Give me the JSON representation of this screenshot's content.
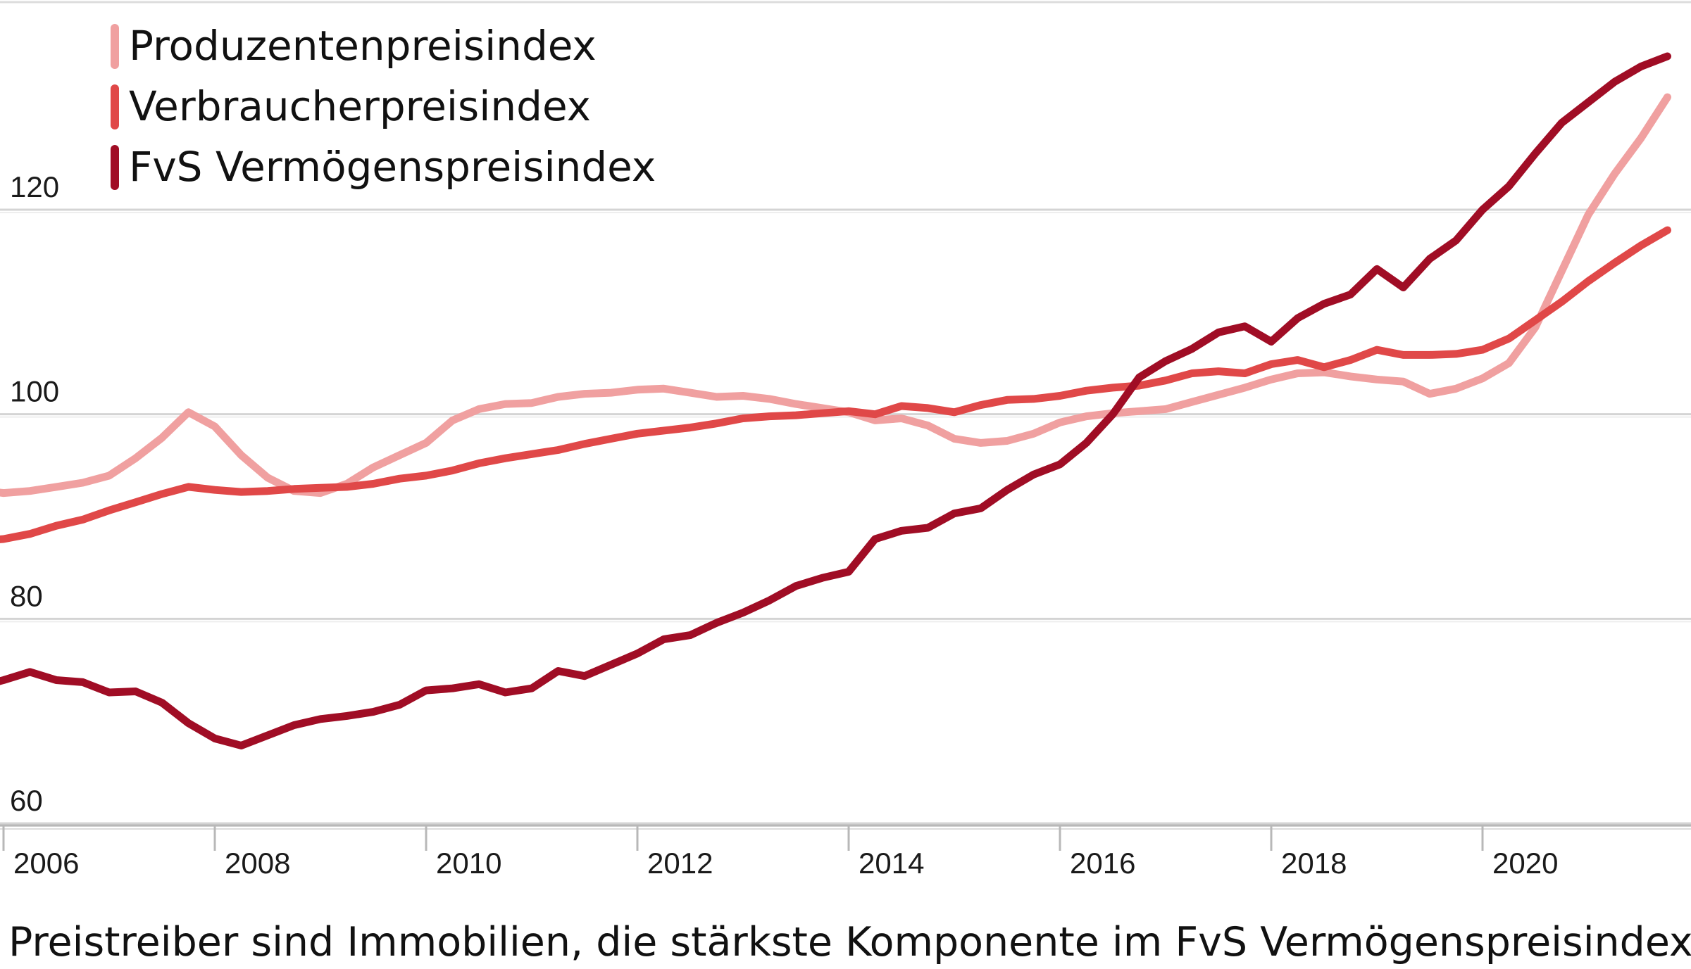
{
  "chart_data": {
    "type": "line",
    "title": "",
    "xlabel": "",
    "ylabel": "",
    "caption": "Preistreiber sind Immobilien, die stärkste Komponente im FvS Vermögenspreisindex",
    "xlim": [
      2005.0,
      2021.75
    ],
    "ylim": [
      58,
      138
    ],
    "yticks": [
      60,
      80,
      100,
      120
    ],
    "ytick_labels": [
      "60",
      "80",
      "100",
      "120"
    ],
    "xticks": [
      2006,
      2008,
      2010,
      2012,
      2014,
      2016,
      2018,
      2020
    ],
    "xtick_labels": [
      "2006",
      "2008",
      "2010",
      "2012",
      "2014",
      "2016",
      "2018",
      "2020"
    ],
    "grid": true,
    "legend_position": "top-left",
    "series": [
      {
        "name": "Produzentenpreisindex",
        "color": "#f0a0a0",
        "points": [
          [
            2005.0,
            89.5
          ],
          [
            2005.25,
            91.7
          ],
          [
            2005.5,
            92.8
          ],
          [
            2005.75,
            92.6
          ],
          [
            2006.0,
            92.3
          ],
          [
            2006.25,
            92.5
          ],
          [
            2006.5,
            92.9
          ],
          [
            2006.75,
            93.3
          ],
          [
            2007.0,
            94.0
          ],
          [
            2007.25,
            95.7
          ],
          [
            2007.5,
            97.7
          ],
          [
            2007.75,
            100.2
          ],
          [
            2008.0,
            98.8
          ],
          [
            2008.25,
            96.0
          ],
          [
            2008.5,
            93.8
          ],
          [
            2008.75,
            92.5
          ],
          [
            2009.0,
            92.3
          ],
          [
            2009.25,
            93.2
          ],
          [
            2009.5,
            94.8
          ],
          [
            2009.75,
            96.0
          ],
          [
            2010.0,
            97.2
          ],
          [
            2010.25,
            99.4
          ],
          [
            2010.5,
            100.5
          ],
          [
            2010.75,
            101.0
          ],
          [
            2011.0,
            101.1
          ],
          [
            2011.25,
            101.7
          ],
          [
            2011.5,
            102.0
          ],
          [
            2011.75,
            102.1
          ],
          [
            2012.0,
            102.4
          ],
          [
            2012.25,
            102.5
          ],
          [
            2012.5,
            102.1
          ],
          [
            2012.75,
            101.7
          ],
          [
            2013.0,
            101.8
          ],
          [
            2013.25,
            101.5
          ],
          [
            2013.5,
            101.0
          ],
          [
            2013.75,
            100.6
          ],
          [
            2014.0,
            100.2
          ],
          [
            2014.25,
            99.4
          ],
          [
            2014.5,
            99.6
          ],
          [
            2014.75,
            98.9
          ],
          [
            2015.0,
            97.6
          ],
          [
            2015.25,
            97.2
          ],
          [
            2015.5,
            97.4
          ],
          [
            2015.75,
            98.1
          ],
          [
            2016.0,
            99.2
          ],
          [
            2016.25,
            99.8
          ],
          [
            2016.5,
            100.1
          ],
          [
            2016.75,
            100.3
          ],
          [
            2017.0,
            100.5
          ],
          [
            2017.25,
            101.2
          ],
          [
            2017.5,
            101.9
          ],
          [
            2017.75,
            102.6
          ],
          [
            2018.0,
            103.4
          ],
          [
            2018.25,
            104.0
          ],
          [
            2018.5,
            104.1
          ],
          [
            2018.75,
            103.7
          ],
          [
            2019.0,
            103.4
          ],
          [
            2019.25,
            103.2
          ],
          [
            2019.5,
            102.0
          ],
          [
            2019.75,
            102.5
          ],
          [
            2020.0,
            103.5
          ],
          [
            2020.25,
            105.0
          ],
          [
            2020.5,
            108.5
          ],
          [
            2020.75,
            114.0
          ],
          [
            2021.0,
            119.5
          ],
          [
            2021.25,
            123.5
          ],
          [
            2021.5,
            127.0
          ],
          [
            2021.75,
            131.0
          ]
        ]
      },
      {
        "name": "Verbraucherpreisindex",
        "color": "#e04848",
        "points": [
          [
            2005.0,
            86.7
          ],
          [
            2005.25,
            87.0
          ],
          [
            2005.5,
            87.4
          ],
          [
            2005.75,
            87.6
          ],
          [
            2006.0,
            87.8
          ],
          [
            2006.25,
            88.3
          ],
          [
            2006.5,
            89.1
          ],
          [
            2006.75,
            89.7
          ],
          [
            2007.0,
            90.6
          ],
          [
            2007.25,
            91.4
          ],
          [
            2007.5,
            92.2
          ],
          [
            2007.75,
            92.9
          ],
          [
            2008.0,
            92.6
          ],
          [
            2008.25,
            92.4
          ],
          [
            2008.5,
            92.5
          ],
          [
            2008.75,
            92.7
          ],
          [
            2009.0,
            92.8
          ],
          [
            2009.25,
            92.9
          ],
          [
            2009.5,
            93.2
          ],
          [
            2009.75,
            93.7
          ],
          [
            2010.0,
            94.0
          ],
          [
            2010.25,
            94.5
          ],
          [
            2010.5,
            95.2
          ],
          [
            2010.75,
            95.7
          ],
          [
            2011.0,
            96.1
          ],
          [
            2011.25,
            96.5
          ],
          [
            2011.5,
            97.1
          ],
          [
            2011.75,
            97.6
          ],
          [
            2012.0,
            98.1
          ],
          [
            2012.25,
            98.4
          ],
          [
            2012.5,
            98.7
          ],
          [
            2012.75,
            99.1
          ],
          [
            2013.0,
            99.6
          ],
          [
            2013.25,
            99.8
          ],
          [
            2013.5,
            99.9
          ],
          [
            2013.75,
            100.1
          ],
          [
            2014.0,
            100.3
          ],
          [
            2014.25,
            100.0
          ],
          [
            2014.5,
            100.8
          ],
          [
            2014.75,
            100.6
          ],
          [
            2015.0,
            100.2
          ],
          [
            2015.25,
            100.9
          ],
          [
            2015.5,
            101.4
          ],
          [
            2015.75,
            101.5
          ],
          [
            2016.0,
            101.8
          ],
          [
            2016.25,
            102.3
          ],
          [
            2016.5,
            102.6
          ],
          [
            2016.75,
            102.8
          ],
          [
            2017.0,
            103.3
          ],
          [
            2017.25,
            104.0
          ],
          [
            2017.5,
            104.2
          ],
          [
            2017.75,
            104.0
          ],
          [
            2018.0,
            104.9
          ],
          [
            2018.25,
            105.3
          ],
          [
            2018.5,
            104.6
          ],
          [
            2018.75,
            105.3
          ],
          [
            2019.0,
            106.3
          ],
          [
            2019.25,
            105.8
          ],
          [
            2019.5,
            105.8
          ],
          [
            2019.75,
            105.9
          ],
          [
            2020.0,
            106.3
          ],
          [
            2020.25,
            107.4
          ],
          [
            2020.5,
            109.2
          ],
          [
            2020.75,
            111.0
          ],
          [
            2021.0,
            113.0
          ],
          [
            2021.25,
            114.8
          ],
          [
            2021.5,
            116.5
          ],
          [
            2021.75,
            118.0
          ]
        ]
      },
      {
        "name": "FvS Vermögenspreisindex",
        "color": "#a00d25",
        "points": [
          [
            2005.0,
            71.2
          ],
          [
            2005.25,
            72.0
          ],
          [
            2005.5,
            72.3
          ],
          [
            2005.75,
            73.3
          ],
          [
            2006.0,
            74.0
          ],
          [
            2006.25,
            74.8
          ],
          [
            2006.5,
            74.0
          ],
          [
            2006.75,
            73.8
          ],
          [
            2007.0,
            72.8
          ],
          [
            2007.25,
            72.9
          ],
          [
            2007.5,
            71.8
          ],
          [
            2007.75,
            69.8
          ],
          [
            2008.0,
            68.3
          ],
          [
            2008.25,
            67.6
          ],
          [
            2008.5,
            68.6
          ],
          [
            2008.75,
            69.6
          ],
          [
            2009.0,
            70.2
          ],
          [
            2009.25,
            70.5
          ],
          [
            2009.5,
            70.9
          ],
          [
            2009.75,
            71.6
          ],
          [
            2010.0,
            73.0
          ],
          [
            2010.25,
            73.2
          ],
          [
            2010.5,
            73.6
          ],
          [
            2010.75,
            72.8
          ],
          [
            2011.0,
            73.2
          ],
          [
            2011.25,
            74.9
          ],
          [
            2011.5,
            74.4
          ],
          [
            2011.75,
            75.5
          ],
          [
            2012.0,
            76.6
          ],
          [
            2012.25,
            78.0
          ],
          [
            2012.5,
            78.4
          ],
          [
            2012.75,
            79.6
          ],
          [
            2013.0,
            80.6
          ],
          [
            2013.25,
            81.8
          ],
          [
            2013.5,
            83.2
          ],
          [
            2013.75,
            84.0
          ],
          [
            2014.0,
            84.6
          ],
          [
            2014.25,
            87.8
          ],
          [
            2014.5,
            88.6
          ],
          [
            2014.75,
            88.9
          ],
          [
            2015.0,
            90.3
          ],
          [
            2015.25,
            90.8
          ],
          [
            2015.5,
            92.6
          ],
          [
            2015.75,
            94.1
          ],
          [
            2016.0,
            95.1
          ],
          [
            2016.25,
            97.2
          ],
          [
            2016.5,
            100.0
          ],
          [
            2016.75,
            103.6
          ],
          [
            2017.0,
            105.2
          ],
          [
            2017.25,
            106.4
          ],
          [
            2017.5,
            108.0
          ],
          [
            2017.75,
            108.6
          ],
          [
            2018.0,
            107.1
          ],
          [
            2018.25,
            109.4
          ],
          [
            2018.5,
            110.8
          ],
          [
            2018.75,
            111.7
          ],
          [
            2019.0,
            114.2
          ],
          [
            2019.25,
            112.4
          ],
          [
            2019.5,
            115.2
          ],
          [
            2019.75,
            117.0
          ],
          [
            2020.0,
            120.0
          ],
          [
            2020.25,
            122.3
          ],
          [
            2020.5,
            125.5
          ],
          [
            2020.75,
            128.5
          ],
          [
            2021.0,
            130.5
          ],
          [
            2021.25,
            132.5
          ],
          [
            2021.5,
            134.0
          ],
          [
            2021.75,
            135.0
          ]
        ]
      }
    ]
  }
}
